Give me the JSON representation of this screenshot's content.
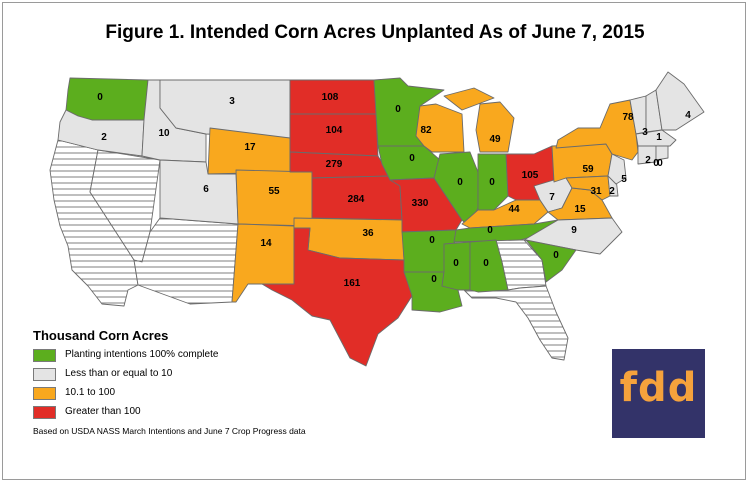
{
  "title": "Figure 1. Intended Corn Acres Unplanted As of June 7, 2015",
  "colors": {
    "green": "#5cae1e",
    "gray": "#e4e4e4",
    "orange": "#f9a81e",
    "red": "#e12d27",
    "hatch": "#ffffff"
  },
  "legend": {
    "title": "Thousand Corn Acres",
    "items": [
      {
        "label": "Planting intentions 100% complete",
        "color": "#5cae1e"
      },
      {
        "label": "Less than or equal to 10",
        "color": "#e4e4e4"
      },
      {
        "label": "10.1 to 100",
        "color": "#f9a81e"
      },
      {
        "label": "Greater than 100",
        "color": "#e12d27"
      }
    ]
  },
  "source": "Based on USDA NASS March Intentions and June 7 Crop Progress data",
  "logo": {
    "text": "fdd"
  },
  "states": [
    {
      "state": "WA",
      "value": "0",
      "category": "green"
    },
    {
      "state": "OR",
      "value": "2",
      "category": "gray"
    },
    {
      "state": "ID",
      "value": "10",
      "category": "gray"
    },
    {
      "state": "MT",
      "value": "3",
      "category": "gray"
    },
    {
      "state": "WY",
      "value": "17",
      "category": "orange"
    },
    {
      "state": "UT",
      "value": "6",
      "category": "gray"
    },
    {
      "state": "CO",
      "value": "55",
      "category": "orange"
    },
    {
      "state": "NM",
      "value": "14",
      "category": "orange"
    },
    {
      "state": "ND",
      "value": "108",
      "category": "red"
    },
    {
      "state": "SD",
      "value": "104",
      "category": "red"
    },
    {
      "state": "NE",
      "value": "279",
      "category": "red"
    },
    {
      "state": "KS",
      "value": "284",
      "category": "red"
    },
    {
      "state": "OK",
      "value": "36",
      "category": "orange"
    },
    {
      "state": "TX",
      "value": "161",
      "category": "red"
    },
    {
      "state": "MN",
      "value": "0",
      "category": "green"
    },
    {
      "state": "IA",
      "value": "0",
      "category": "green"
    },
    {
      "state": "MO",
      "value": "330",
      "category": "red"
    },
    {
      "state": "AR",
      "value": "0",
      "category": "green"
    },
    {
      "state": "LA",
      "value": "0",
      "category": "green"
    },
    {
      "state": "WI",
      "value": "82",
      "category": "orange"
    },
    {
      "state": "IL",
      "value": "0",
      "category": "green"
    },
    {
      "state": "MI",
      "value": "49",
      "category": "orange"
    },
    {
      "state": "IN",
      "value": "0",
      "category": "green"
    },
    {
      "state": "OH",
      "value": "105",
      "category": "red"
    },
    {
      "state": "KY",
      "value": "44",
      "category": "orange"
    },
    {
      "state": "TN",
      "value": "0",
      "category": "green"
    },
    {
      "state": "MS",
      "value": "0",
      "category": "green"
    },
    {
      "state": "AL",
      "value": "0",
      "category": "green"
    },
    {
      "state": "WV",
      "value": "7",
      "category": "gray"
    },
    {
      "state": "VA",
      "value": "15",
      "category": "orange"
    },
    {
      "state": "NC",
      "value": "9",
      "category": "gray"
    },
    {
      "state": "SC",
      "value": "0",
      "category": "green"
    },
    {
      "state": "PA",
      "value": "59",
      "category": "orange"
    },
    {
      "state": "NY",
      "value": "78",
      "category": "orange"
    },
    {
      "state": "MD",
      "value": "31",
      "category": "orange"
    },
    {
      "state": "DE",
      "value": "2",
      "category": "gray"
    },
    {
      "state": "NJ",
      "value": "5",
      "category": "gray"
    },
    {
      "state": "VT",
      "value": "3",
      "category": "gray"
    },
    {
      "state": "NH",
      "value": "1",
      "category": "gray"
    },
    {
      "state": "ME",
      "value": "4",
      "category": "gray"
    },
    {
      "state": "MA",
      "value": "2",
      "category": "gray"
    },
    {
      "state": "CT",
      "value": "0",
      "category": "gray"
    },
    {
      "state": "RI",
      "value": "0",
      "category": "gray"
    }
  ]
}
